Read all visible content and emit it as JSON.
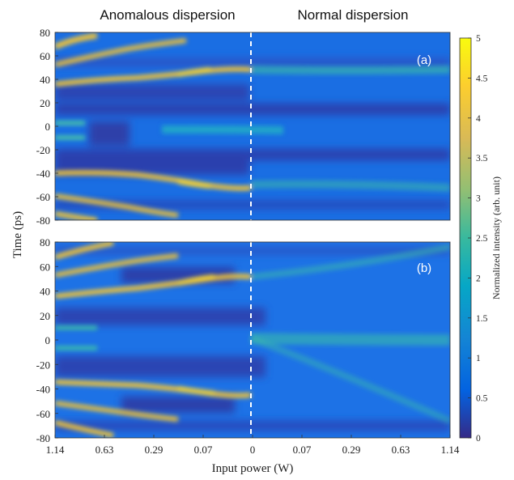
{
  "header": {
    "left_title": "Anomalous dispersion",
    "right_title": "Normal dispersion"
  },
  "chart_data": {
    "type": "heatmap",
    "panels": [
      {
        "label": "(a)"
      },
      {
        "label": "(b)"
      }
    ],
    "xlabel": "Input power (W)",
    "ylabel": "Time (ps)",
    "x_tick_labels": [
      "1.14",
      "0.63",
      "0.29",
      "0.07",
      "0",
      "0.07",
      "0.29",
      "0.63",
      "1.14"
    ],
    "y_tick_labels": [
      "80",
      "60",
      "40",
      "20",
      "0",
      "-20",
      "-40",
      "-60",
      "-80"
    ],
    "ylim": [
      -80,
      80
    ],
    "divider": "dashed white line at 0 W separating anomalous and normal dispersion",
    "colorbar": {
      "label": "Normalized intensity (arb. unit)",
      "tick_labels": [
        "0",
        "0.5",
        "1",
        "1.5",
        "2",
        "2.5",
        "3",
        "3.5",
        "4",
        "4.5",
        "5"
      ],
      "range": [
        0,
        5
      ],
      "colormap": "parula"
    }
  }
}
